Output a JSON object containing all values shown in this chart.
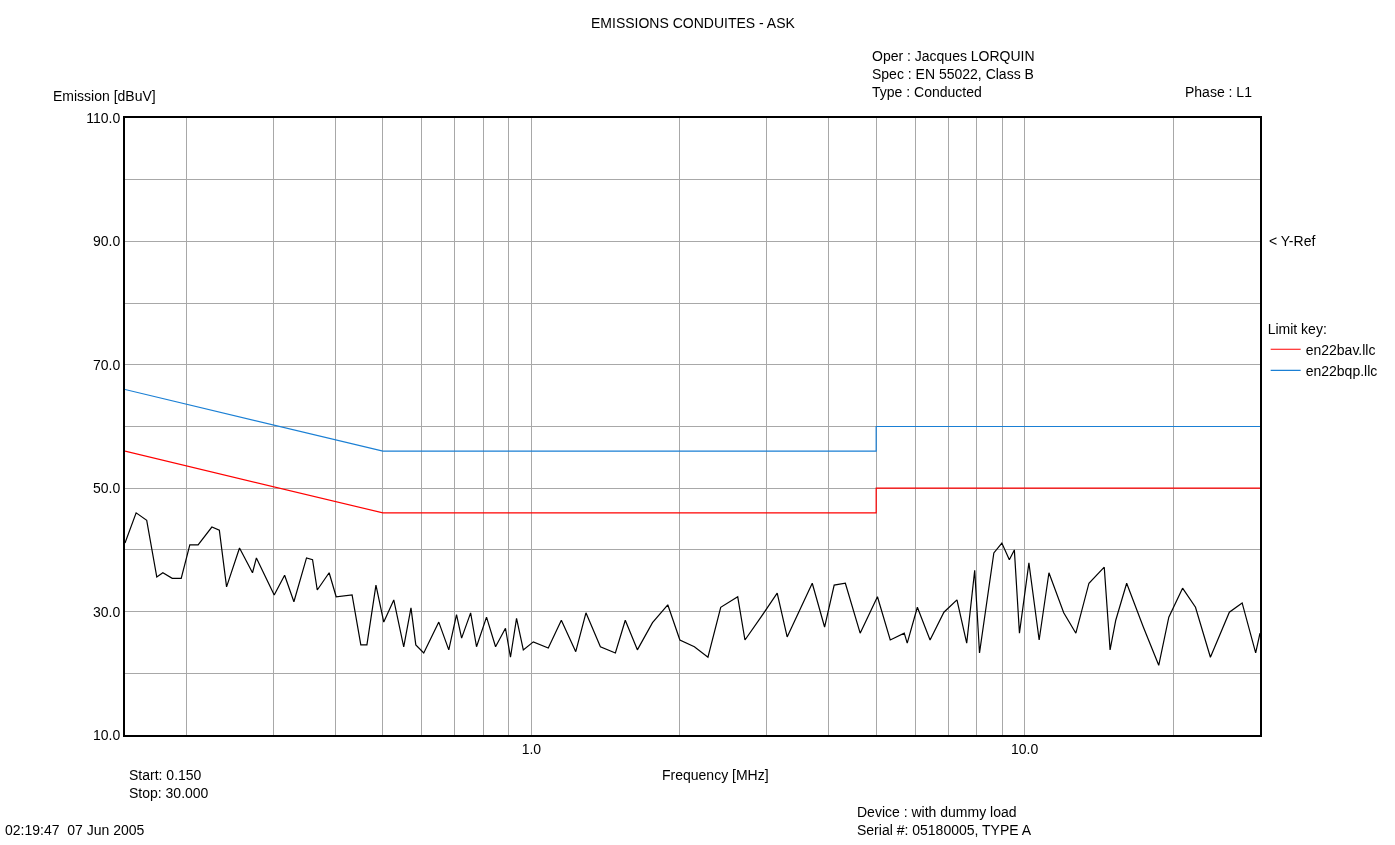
{
  "chart_data": {
    "type": "line",
    "title": "EMISSIONS CONDUITES - ASK",
    "xlabel": "Frequency [MHz]",
    "ylabel": "Emission [dBuV]",
    "legend_title": "Limit key:",
    "legend": "right",
    "grid": true,
    "log": "x",
    "marker": "none",
    "line_style": "solid",
    "xlim": [
      0.15,
      30
    ],
    "xticks": [
      {
        "value": 0.2,
        "label": null
      },
      {
        "value": 0.3,
        "label": null
      },
      {
        "value": 0.4,
        "label": null
      },
      {
        "value": 0.5,
        "label": null
      },
      {
        "value": 0.6,
        "label": null
      },
      {
        "value": 0.7,
        "label": null
      },
      {
        "value": 0.8,
        "label": null
      },
      {
        "value": 0.9,
        "label": null
      },
      {
        "value": 1,
        "label": "1.0"
      },
      {
        "value": 2,
        "label": null
      },
      {
        "value": 3,
        "label": null
      },
      {
        "value": 4,
        "label": null
      },
      {
        "value": 5,
        "label": null
      },
      {
        "value": 6,
        "label": null
      },
      {
        "value": 7,
        "label": null
      },
      {
        "value": 8,
        "label": null
      },
      {
        "value": 9,
        "label": null
      },
      {
        "value": 10,
        "label": "10.0"
      },
      {
        "value": 20,
        "label": null
      }
    ],
    "ylim": [
      10,
      110
    ],
    "yticks": [
      {
        "value": 10,
        "label": "10.0"
      },
      {
        "value": 20,
        "label": null
      },
      {
        "value": 30,
        "label": "30.0"
      },
      {
        "value": 40,
        "label": null
      },
      {
        "value": 50,
        "label": "50.0"
      },
      {
        "value": 60,
        "label": null
      },
      {
        "value": 70,
        "label": "70.0"
      },
      {
        "value": 80,
        "label": null
      },
      {
        "value": 90,
        "label": "90.0"
      },
      {
        "value": 100,
        "label": null
      },
      {
        "value": 110,
        "label": "110.0"
      }
    ],
    "series": [
      {
        "name": "en22bav.llc",
        "color": "#ff0000",
        "x": [
          0.15,
          0.5,
          5,
          5,
          30
        ],
        "values": [
          56,
          46,
          46,
          50,
          50
        ]
      },
      {
        "name": "en22bqp.llc",
        "color": "#1a7fd4",
        "x": [
          0.15,
          0.5,
          5,
          5,
          30
        ],
        "values": [
          66,
          56,
          56,
          60,
          60
        ]
      },
      {
        "color": "#000000",
        "x": [
          0.15,
          0.158,
          0.166,
          0.174,
          0.179,
          0.187,
          0.195,
          0.203,
          0.211,
          0.225,
          0.233,
          0.241,
          0.256,
          0.272,
          0.277,
          0.301,
          0.316,
          0.33,
          0.35,
          0.36,
          0.368,
          0.389,
          0.402,
          0.433,
          0.451,
          0.464,
          0.484,
          0.502,
          0.526,
          0.551,
          0.57,
          0.583,
          0.605,
          0.649,
          0.68,
          0.705,
          0.722,
          0.753,
          0.774,
          0.811,
          0.846,
          0.886,
          0.907,
          0.933,
          0.963,
          1.009,
          1.082,
          1.15,
          1.23,
          1.29,
          1.38,
          1.48,
          1.55,
          1.64,
          1.76,
          1.89,
          2.0,
          2.14,
          2.28,
          2.42,
          2.62,
          2.71,
          2.92,
          3.15,
          3.3,
          3.71,
          3.93,
          4.11,
          4.33,
          4.64,
          5.03,
          5.34,
          5.7,
          5.78,
          6.06,
          6.43,
          6.86,
          7.29,
          7.63,
          7.92,
          8.1,
          8.66,
          8.99,
          9.31,
          9.53,
          9.76,
          10.2,
          10.7,
          11.2,
          12.0,
          12.7,
          13.5,
          14.5,
          14.9,
          15.3,
          16.1,
          17.4,
          18.7,
          19.6,
          20.9,
          22.2,
          23.8,
          26.0,
          27.6,
          29.4,
          30
        ],
        "values": [
          41.1,
          46.0,
          44.8,
          35.6,
          36.3,
          35.4,
          35.4,
          40.8,
          40.8,
          43.7,
          43.2,
          34.0,
          40.3,
          36.3,
          38.7,
          32.7,
          35.9,
          31.6,
          38.7,
          38.4,
          33.5,
          36.3,
          32.4,
          32.7,
          24.6,
          24.6,
          34.3,
          28.3,
          31.9,
          24.3,
          30.6,
          24.6,
          23.3,
          28.3,
          23.8,
          29.5,
          25.7,
          29.8,
          24.3,
          29.1,
          24.3,
          27.3,
          22.6,
          28.9,
          23.8,
          25.1,
          24.1,
          28.6,
          23.5,
          29.8,
          24.3,
          23.3,
          28.6,
          23.8,
          28.2,
          31.1,
          25.4,
          24.3,
          22.6,
          30.7,
          32.4,
          25.4,
          29.1,
          33.0,
          25.9,
          34.6,
          27.5,
          34.3,
          34.6,
          26.5,
          32.4,
          25.4,
          26.5,
          24.9,
          30.7,
          25.4,
          29.9,
          31.9,
          24.9,
          36.7,
          23.3,
          39.5,
          41.1,
          38.4,
          40.0,
          26.5,
          37.9,
          25.4,
          36.3,
          29.8,
          26.5,
          34.6,
          37.2,
          23.8,
          28.6,
          34.6,
          27.5,
          21.3,
          29.1,
          33.8,
          30.7,
          22.6,
          29.9,
          31.4,
          23.3,
          26.5
        ]
      }
    ],
    "annotations": [
      "Oper : Jacques LORQUIN",
      "Spec : EN 55022, Class B",
      "Type : Conducted",
      "Phase : L1",
      "< Y-Ref",
      "Start: 0.150",
      "Stop: 30.000",
      "02:19:47  07 Jun 2005",
      "Device : with dummy load",
      "Serial #: 05180005, TYPE A"
    ]
  }
}
